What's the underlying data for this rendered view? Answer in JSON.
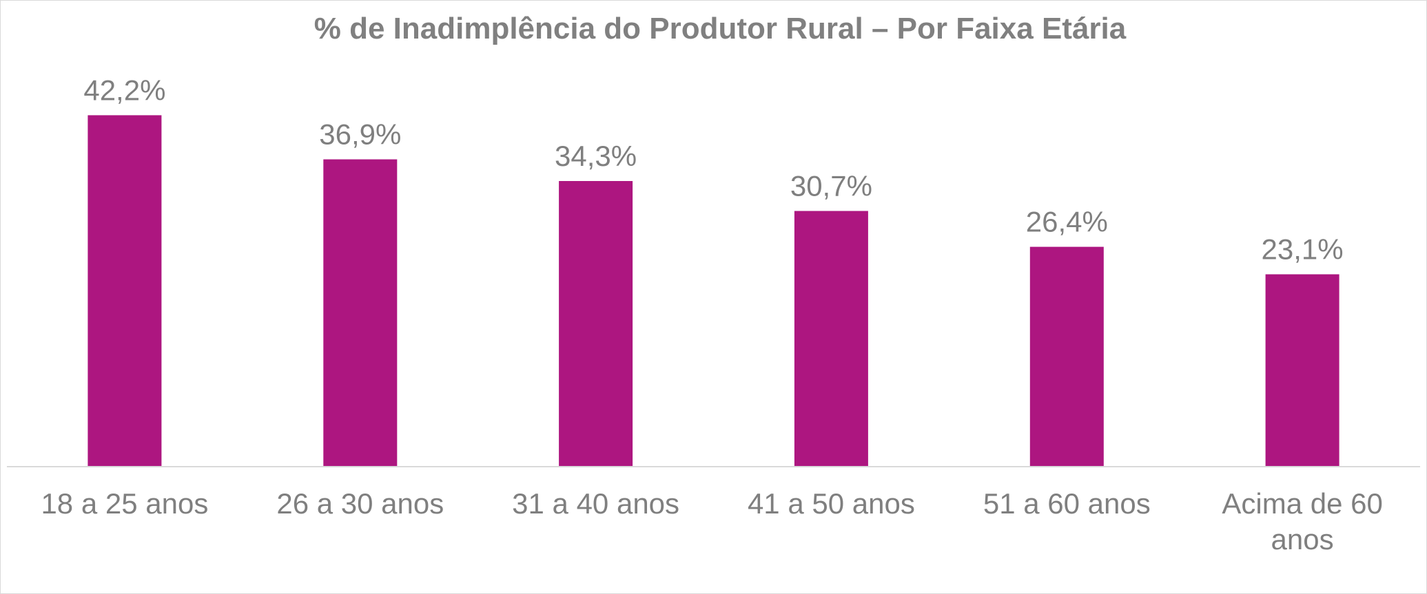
{
  "chart_data": {
    "type": "bar",
    "title": "% de Inadimplência do Produtor Rural – Por Faixa Etária",
    "xlabel": "",
    "ylabel": "",
    "categories": [
      [
        "18 a 25 anos"
      ],
      [
        "26 a 30 anos"
      ],
      [
        "31 a 40 anos"
      ],
      [
        "41 a 50 anos"
      ],
      [
        "51 a 60 anos"
      ],
      [
        "Acima de 60",
        "anos"
      ]
    ],
    "values": [
      42.2,
      36.9,
      34.3,
      30.7,
      26.4,
      23.1
    ],
    "data_labels": [
      "42,2%",
      "36,9%",
      "34,3%",
      "30,7%",
      "26,4%",
      "23,1%"
    ],
    "ylim": [
      0,
      100
    ],
    "grid": false,
    "legend": "none",
    "colors": {
      "bar": "#AD1680",
      "text": "#7F7F7F",
      "axis": "#D9D9D9"
    }
  }
}
